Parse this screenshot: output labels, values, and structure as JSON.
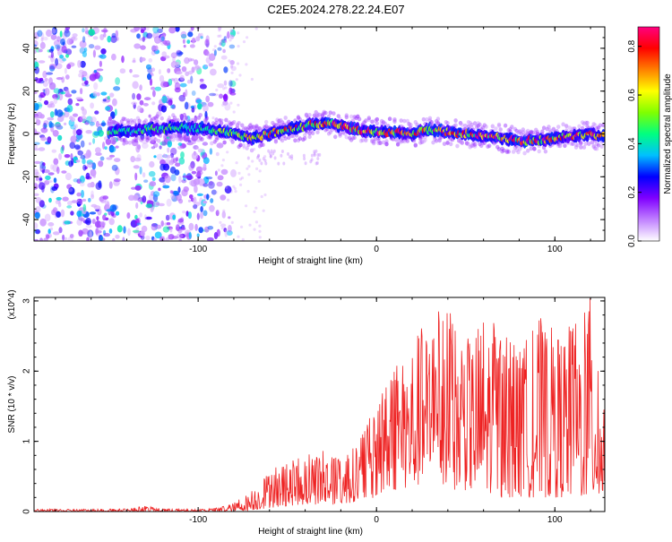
{
  "title": "C2E5.2024.278.22.24.E07",
  "chart_data": [
    {
      "type": "heatmap",
      "xlabel": "Height of straight line (km)",
      "ylabel": "Frequency (Hz)",
      "xlim": [
        -192,
        128
      ],
      "ylim": [
        -50,
        50
      ],
      "xticks": [
        -100,
        0,
        100
      ],
      "yticks": [
        -40,
        -20,
        0,
        20,
        40
      ],
      "colorbar": {
        "label": "Normalized spectral amplitude",
        "range": [
          0.0,
          0.88
        ],
        "ticks": [
          0.0,
          0.2,
          0.4,
          0.6,
          0.8
        ],
        "colors": [
          "#ffffff",
          "#c080ff",
          "#8000ff",
          "#0000ff",
          "#00c0ff",
          "#00ff80",
          "#80ff00",
          "#ffff00",
          "#ff8000",
          "#ff0000",
          "#ff0080"
        ]
      },
      "noise_region_x": [
        -192,
        -88
      ],
      "signal_region_x": [
        -150,
        128
      ],
      "ridge": {
        "x": [
          -150,
          -130,
          -110,
          -92,
          -80,
          -70,
          -60,
          -50,
          -40,
          -30,
          -20,
          -10,
          0,
          10,
          20,
          30,
          40,
          50,
          60,
          70,
          80,
          90,
          100,
          110,
          120,
          128
        ],
        "frequency": [
          1,
          2,
          3,
          2,
          0,
          -2,
          0,
          2,
          4,
          5,
          4,
          2,
          1,
          1,
          0,
          2,
          1,
          0,
          -1,
          -2,
          -3,
          -3,
          -2,
          -1,
          0,
          -1
        ]
      }
    },
    {
      "type": "line",
      "xlabel": "Height of straight line (km)",
      "ylabel": "SNR (10 * v/v)",
      "y_multiplier": "(x10^4)",
      "xlim": [
        -192,
        128
      ],
      "ylim": [
        0,
        3.05
      ],
      "xticks": [
        -100,
        0,
        100
      ],
      "yticks": [
        0,
        1,
        2,
        3
      ],
      "series": [
        {
          "color": "#ee2222",
          "envelope": {
            "x": [
              -192,
              -140,
              -130,
              -120,
              -100,
              -90,
              -80,
              -70,
              -60,
              -50,
              -40,
              -30,
              -20,
              -10,
              0,
              10,
              20,
              30,
              40,
              50,
              60,
              70,
              80,
              90,
              100,
              110,
              120,
              128
            ],
            "max": [
              0.03,
              0.04,
              0.08,
              0.04,
              0.03,
              0.05,
              0.12,
              0.3,
              0.6,
              0.7,
              0.8,
              0.9,
              0.75,
              1.0,
              1.55,
              2.1,
              2.5,
              2.8,
              3.0,
              2.4,
              2.9,
              2.6,
              2.3,
              2.8,
              2.6,
              2.7,
              3.05,
              1.5
            ],
            "min": [
              0.0,
              0.0,
              0.0,
              0.0,
              0.0,
              0.0,
              0.0,
              0.02,
              0.05,
              0.08,
              0.1,
              0.1,
              0.1,
              0.15,
              0.2,
              0.3,
              0.35,
              0.4,
              0.3,
              0.3,
              0.3,
              0.2,
              0.2,
              0.2,
              0.2,
              0.2,
              0.2,
              0.2
            ]
          }
        }
      ]
    }
  ]
}
